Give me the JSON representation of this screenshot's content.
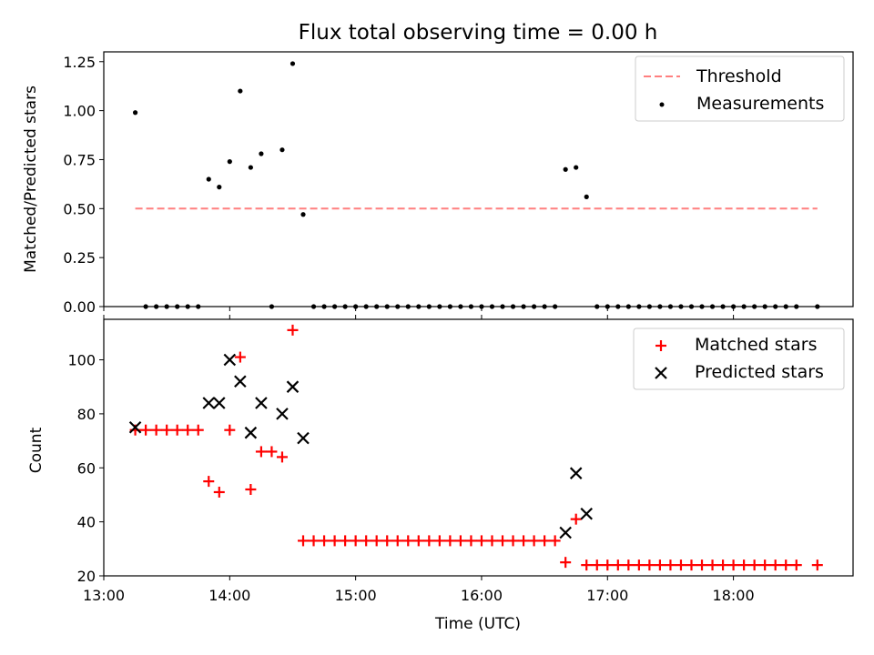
{
  "chart_data": [
    {
      "type": "scatter",
      "title": "Flux total observing time = 0.00 h",
      "xlabel": "",
      "ylabel": "Matched/Predicted stars",
      "xlim": [
        "13:00",
        "18:57"
      ],
      "ylim": [
        0,
        1.3
      ],
      "yticks": [
        0.0,
        0.25,
        0.5,
        0.75,
        1.0,
        1.25
      ],
      "ytick_labels": [
        "0.00",
        "0.25",
        "0.50",
        "0.75",
        "1.00",
        "1.25"
      ],
      "legend_position": "top-right",
      "series": [
        {
          "name": "Threshold",
          "style": "dashed-line",
          "color": "#ff7f7f",
          "x": [
            "13:15",
            "18:40"
          ],
          "y": [
            0.5,
            0.5
          ]
        },
        {
          "name": "Measurements",
          "style": "dot",
          "color": "#000000",
          "x": [
            "13:15",
            "13:20",
            "13:25",
            "13:30",
            "13:35",
            "13:40",
            "13:45",
            "13:50",
            "13:55",
            "14:00",
            "14:05",
            "14:10",
            "14:15",
            "14:20",
            "14:25",
            "14:30",
            "14:35",
            "14:40",
            "14:45",
            "14:50",
            "14:55",
            "15:00",
            "15:05",
            "15:10",
            "15:15",
            "15:20",
            "15:25",
            "15:30",
            "15:35",
            "15:40",
            "15:45",
            "15:50",
            "15:55",
            "16:00",
            "16:05",
            "16:10",
            "16:15",
            "16:20",
            "16:25",
            "16:30",
            "16:35",
            "16:40",
            "16:45",
            "16:50",
            "16:55",
            "17:00",
            "17:05",
            "17:10",
            "17:15",
            "17:20",
            "17:25",
            "17:30",
            "17:35",
            "17:40",
            "17:45",
            "17:50",
            "17:55",
            "18:00",
            "18:05",
            "18:10",
            "18:15",
            "18:20",
            "18:25",
            "18:30",
            "18:40"
          ],
          "y": [
            0.99,
            0,
            0,
            0,
            0,
            0,
            0,
            0.65,
            0.61,
            0.74,
            1.1,
            0.71,
            0.78,
            0,
            0.8,
            1.24,
            0.47,
            0,
            0,
            0,
            0,
            0,
            0,
            0,
            0,
            0,
            0,
            0,
            0,
            0,
            0,
            0,
            0,
            0,
            0,
            0,
            0,
            0,
            0,
            0,
            0,
            0.7,
            0.71,
            0.56,
            0,
            0,
            0,
            0,
            0,
            0,
            0,
            0,
            0,
            0,
            0,
            0,
            0,
            0,
            0,
            0,
            0,
            0,
            0,
            0,
            0
          ]
        }
      ]
    },
    {
      "type": "scatter",
      "title": "",
      "xlabel": "Time (UTC)",
      "ylabel": "Count",
      "xlim": [
        "13:00",
        "18:57"
      ],
      "ylim": [
        20,
        115
      ],
      "yticks": [
        20,
        40,
        60,
        80,
        100
      ],
      "ytick_labels": [
        "20",
        "40",
        "60",
        "80",
        "100"
      ],
      "xticks": [
        "13:00",
        "14:00",
        "15:00",
        "16:00",
        "17:00",
        "18:00"
      ],
      "legend_position": "top-right",
      "series": [
        {
          "name": "Matched stars",
          "marker": "plus",
          "color": "#ff0000",
          "x": [
            "13:15",
            "13:20",
            "13:25",
            "13:30",
            "13:35",
            "13:40",
            "13:45",
            "13:50",
            "13:55",
            "14:00",
            "14:05",
            "14:10",
            "14:15",
            "14:20",
            "14:25",
            "14:30",
            "14:35",
            "14:40",
            "14:45",
            "14:50",
            "14:55",
            "15:00",
            "15:05",
            "15:10",
            "15:15",
            "15:20",
            "15:25",
            "15:30",
            "15:35",
            "15:40",
            "15:45",
            "15:50",
            "15:55",
            "16:00",
            "16:05",
            "16:10",
            "16:15",
            "16:20",
            "16:25",
            "16:30",
            "16:35",
            "16:40",
            "16:45",
            "16:50",
            "16:55",
            "17:00",
            "17:05",
            "17:10",
            "17:15",
            "17:20",
            "17:25",
            "17:30",
            "17:35",
            "17:40",
            "17:45",
            "17:50",
            "17:55",
            "18:00",
            "18:05",
            "18:10",
            "18:15",
            "18:20",
            "18:25",
            "18:30",
            "18:40"
          ],
          "y": [
            74,
            74,
            74,
            74,
            74,
            74,
            74,
            55,
            51,
            74,
            101,
            52,
            66,
            66,
            64,
            111,
            33,
            33,
            33,
            33,
            33,
            33,
            33,
            33,
            33,
            33,
            33,
            33,
            33,
            33,
            33,
            33,
            33,
            33,
            33,
            33,
            33,
            33,
            33,
            33,
            33,
            25,
            41,
            24,
            24,
            24,
            24,
            24,
            24,
            24,
            24,
            24,
            24,
            24,
            24,
            24,
            24,
            24,
            24,
            24,
            24,
            24,
            24,
            24,
            24
          ]
        },
        {
          "name": "Predicted stars",
          "marker": "x",
          "color": "#000000",
          "x": [
            "13:15",
            "13:50",
            "13:55",
            "14:00",
            "14:05",
            "14:10",
            "14:15",
            "14:25",
            "14:30",
            "14:35",
            "16:40",
            "16:45",
            "16:50"
          ],
          "y": [
            75,
            84,
            84,
            100,
            92,
            73,
            84,
            80,
            90,
            71,
            36,
            58,
            43
          ]
        }
      ]
    }
  ]
}
